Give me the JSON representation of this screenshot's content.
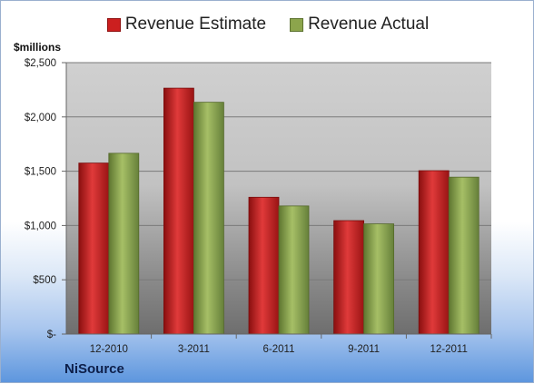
{
  "chart_data": {
    "type": "bar",
    "ylabel": "$millions",
    "categories": [
      "12-2010",
      "3-2011",
      "6-2011",
      "9-2011",
      "12-2011"
    ],
    "series": [
      {
        "name": "Revenue Estimate",
        "color": "#cc1f1f",
        "values": [
          1575,
          2265,
          1260,
          1045,
          1505
        ]
      },
      {
        "name": "Revenue Actual",
        "color": "#8ca54c",
        "values": [
          1665,
          2135,
          1180,
          1015,
          1445
        ]
      }
    ],
    "ylim": [
      0,
      2500
    ],
    "yticks": [
      0,
      500,
      1000,
      1500,
      2000,
      2500
    ],
    "ytick_labels": [
      "$-",
      "$500",
      "$1,000",
      "$1,500",
      "$2,000",
      "$2,500"
    ],
    "grid": true,
    "legend_position": "top"
  },
  "company": "NiSource"
}
